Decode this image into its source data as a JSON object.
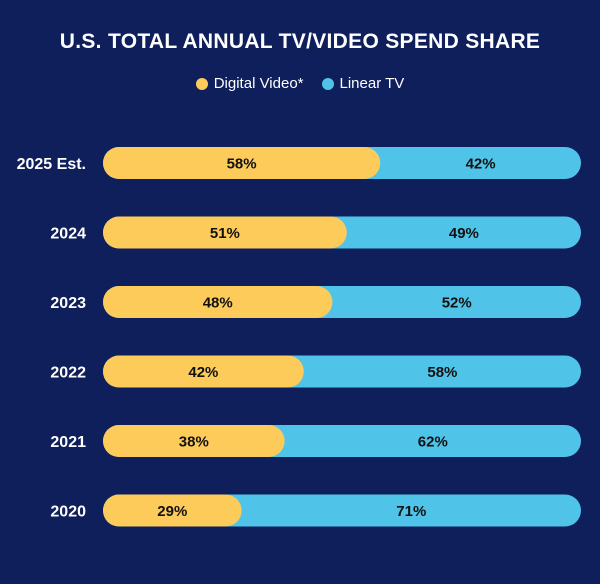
{
  "chart_data": {
    "type": "bar",
    "orientation": "horizontal",
    "stacked": true,
    "title": "U.S. TOTAL ANNUAL TV/VIDEO SPEND SHARE",
    "categories": [
      "2025 Est.",
      "2024",
      "2023",
      "2022",
      "2021",
      "2020"
    ],
    "series": [
      {
        "name": "Digital Video*",
        "values": [
          58,
          51,
          48,
          42,
          38,
          29
        ],
        "labels": [
          "58%",
          "51%",
          "48%",
          "42%",
          "38%",
          "29%"
        ],
        "color": "#fdcb5a"
      },
      {
        "name": "Linear TV",
        "values": [
          42,
          49,
          52,
          58,
          62,
          71
        ],
        "labels": [
          "42%",
          "49%",
          "52%",
          "58%",
          "62%",
          "71%"
        ],
        "color": "#4fc3e8"
      }
    ],
    "xlim": [
      0,
      100
    ],
    "unit": "%",
    "legend_position": "top-center",
    "grid": false,
    "colors": {
      "background": "#0e1f5b",
      "text": "#ffffff",
      "label": "#111111"
    }
  }
}
